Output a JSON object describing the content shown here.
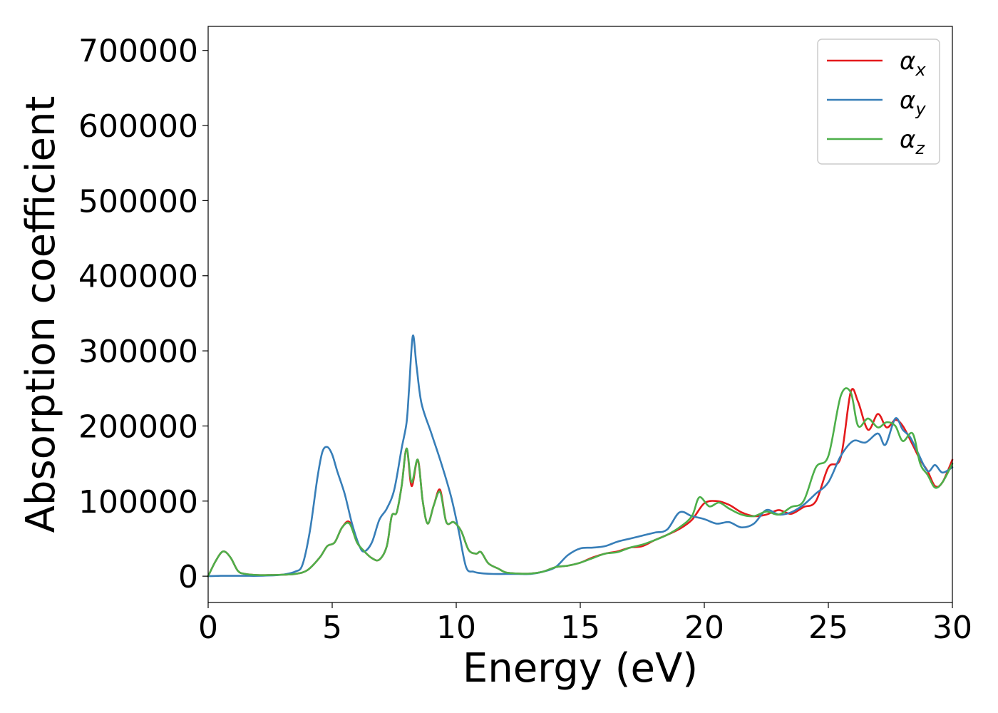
{
  "chart_data": {
    "type": "line",
    "xlabel": "Energy (eV)",
    "ylabel": "Absorption coefficient",
    "xlim": [
      0,
      30
    ],
    "ylim": [
      -35000,
      732000
    ],
    "xticks": [
      0,
      5,
      10,
      15,
      20,
      25,
      30
    ],
    "xtick_labels": [
      "0",
      "5",
      "10",
      "15",
      "20",
      "25",
      "30"
    ],
    "yticks": [
      0,
      100000,
      200000,
      300000,
      400000,
      500000,
      600000,
      700000
    ],
    "ytick_labels": [
      "0",
      "100000",
      "200000",
      "300000",
      "400000",
      "500000",
      "600000",
      "700000"
    ],
    "grid": false,
    "legend_position": "top-right",
    "series": [
      {
        "name": "α",
        "subscript": "x",
        "color": "#e41a1c",
        "x": [
          0,
          0.3,
          0.6,
          0.9,
          1.2,
          1.5,
          2,
          2.5,
          3,
          3.5,
          4,
          4.5,
          4.8,
          5.1,
          5.4,
          5.7,
          6,
          6.3,
          6.6,
          6.9,
          7.2,
          7.4,
          7.6,
          7.8,
          8.0,
          8.2,
          8.45,
          8.65,
          8.85,
          9.1,
          9.35,
          9.6,
          9.9,
          10.2,
          10.5,
          10.8,
          11,
          11.3,
          11.7,
          12,
          12.5,
          13,
          13.5,
          14,
          14.5,
          15,
          15.5,
          16,
          16.5,
          17,
          17.5,
          18,
          18.5,
          19,
          19.5,
          20,
          20.5,
          21,
          21.5,
          22,
          22.5,
          23,
          23.5,
          24,
          24.5,
          25,
          25.5,
          25.9,
          26.2,
          26.6,
          27,
          27.35,
          27.7,
          28,
          28.4,
          28.7,
          29,
          29.3,
          29.6,
          30
        ],
        "y": [
          0,
          20000,
          33000,
          25000,
          7000,
          3000,
          1500,
          1500,
          2000,
          3000,
          8000,
          25000,
          40000,
          45000,
          65000,
          72000,
          45000,
          33000,
          24000,
          22000,
          40000,
          80000,
          85000,
          120000,
          170000,
          120000,
          155000,
          100000,
          70000,
          95000,
          115000,
          72000,
          72000,
          60000,
          35000,
          30000,
          32000,
          17000,
          10000,
          5000,
          3500,
          3500,
          6000,
          12000,
          14000,
          18000,
          25000,
          30000,
          33000,
          38000,
          40000,
          48000,
          55000,
          63000,
          75000,
          97000,
          100000,
          95000,
          85000,
          80000,
          82000,
          88000,
          83000,
          92000,
          100000,
          145000,
          158000,
          245000,
          232000,
          195000,
          216000,
          198000,
          208000,
          200000,
          175000,
          155000,
          140000,
          120000,
          125000,
          155000
        ]
      },
      {
        "name": "α",
        "subscript": "y",
        "color": "#377eb8",
        "x": [
          0,
          0.5,
          1,
          1.5,
          2,
          2.5,
          3,
          3.5,
          3.8,
          4.1,
          4.4,
          4.6,
          4.8,
          5.0,
          5.2,
          5.5,
          5.8,
          6.1,
          6.3,
          6.6,
          6.9,
          7.2,
          7.5,
          7.8,
          8.0,
          8.1,
          8.25,
          8.4,
          8.6,
          9.0,
          9.4,
          9.8,
          10.1,
          10.4,
          10.7,
          11,
          11.5,
          12,
          12.5,
          13,
          13.5,
          14,
          14.5,
          15,
          15.5,
          16,
          16.5,
          17,
          17.5,
          18,
          18.5,
          19,
          19.5,
          20,
          20.5,
          21,
          21.5,
          22,
          22.5,
          23,
          23.5,
          24,
          24.5,
          25,
          25.5,
          26,
          26.5,
          27,
          27.3,
          27.7,
          28,
          28.3,
          28.6,
          29,
          29.3,
          29.6,
          30
        ],
        "y": [
          0,
          500,
          500,
          500,
          500,
          1000,
          2000,
          6000,
          15000,
          60000,
          130000,
          165000,
          172000,
          162000,
          140000,
          110000,
          70000,
          40000,
          33000,
          45000,
          75000,
          90000,
          115000,
          170000,
          205000,
          250000,
          320000,
          280000,
          230000,
          190000,
          150000,
          105000,
          60000,
          12000,
          6000,
          4000,
          3000,
          3000,
          3000,
          3000,
          6000,
          12000,
          28000,
          37000,
          38000,
          40000,
          46000,
          50000,
          54000,
          58000,
          62000,
          85000,
          80000,
          76000,
          70000,
          72000,
          65000,
          70000,
          88000,
          82000,
          85000,
          95000,
          110000,
          125000,
          160000,
          180000,
          178000,
          190000,
          175000,
          210000,
          195000,
          185000,
          165000,
          140000,
          148000,
          138000,
          145000
        ]
      },
      {
        "name": "α",
        "subscript": "z",
        "color": "#4daf4a",
        "x": [
          0,
          0.3,
          0.6,
          0.9,
          1.2,
          1.5,
          2,
          2.5,
          3,
          3.5,
          4,
          4.5,
          4.8,
          5.1,
          5.4,
          5.7,
          6,
          6.3,
          6.6,
          6.9,
          7.2,
          7.4,
          7.6,
          7.8,
          8.0,
          8.2,
          8.45,
          8.65,
          8.85,
          9.1,
          9.35,
          9.6,
          9.9,
          10.2,
          10.5,
          10.8,
          11,
          11.3,
          11.7,
          12,
          12.5,
          13,
          13.5,
          14,
          14.5,
          15,
          15.5,
          16,
          16.5,
          17,
          17.5,
          18,
          18.5,
          19,
          19.5,
          19.8,
          20.2,
          20.6,
          21,
          21.5,
          22,
          22.5,
          23,
          23.5,
          24,
          24.5,
          25,
          25.5,
          25.9,
          26.2,
          26.6,
          27,
          27.35,
          27.7,
          28,
          28.4,
          28.7,
          29,
          29.3,
          29.6,
          30
        ],
        "y": [
          0,
          20000,
          33000,
          25000,
          7000,
          3000,
          1500,
          1500,
          2000,
          3000,
          8000,
          25000,
          40000,
          45000,
          65000,
          70000,
          45000,
          33000,
          24000,
          22000,
          40000,
          80000,
          85000,
          120000,
          170000,
          125000,
          155000,
          100000,
          70000,
          95000,
          112000,
          72000,
          72000,
          60000,
          35000,
          30000,
          32000,
          17000,
          10000,
          5000,
          3500,
          3500,
          6000,
          12000,
          14000,
          18000,
          24000,
          30000,
          32000,
          38000,
          42000,
          48000,
          55000,
          65000,
          80000,
          105000,
          93000,
          98000,
          90000,
          82000,
          80000,
          86000,
          82000,
          92000,
          100000,
          145000,
          160000,
          240000,
          245000,
          200000,
          210000,
          198000,
          205000,
          200000,
          180000,
          190000,
          150000,
          135000,
          118000,
          125000,
          150000
        ]
      }
    ]
  }
}
